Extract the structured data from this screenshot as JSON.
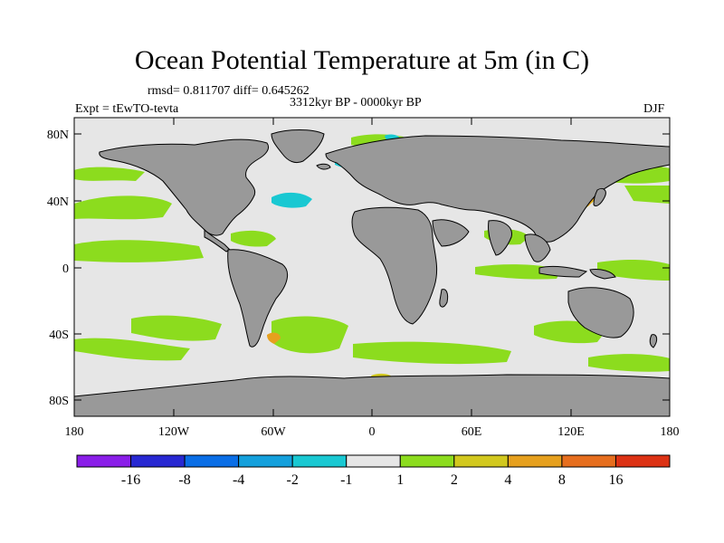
{
  "title": "Ocean Potential Temperature at 5m (in C)",
  "stats": "rmsd= 0.811707 diff= 0.645262",
  "period": "3312kyr BP - 0000kyr BP",
  "experiment": "Expt = tEwTO-tevta",
  "season": "DJF",
  "lat_ticks": [
    "80N",
    "40N",
    "0",
    "40S",
    "80S"
  ],
  "lon_ticks": [
    "180",
    "120W",
    "60W",
    "0",
    "60E",
    "120E",
    "180"
  ],
  "colorbar": {
    "labels": [
      "-16",
      "-8",
      "-4",
      "-2",
      "-1",
      "1",
      "2",
      "4",
      "8",
      "16"
    ],
    "colors": [
      "#8a1ee8",
      "#2828d2",
      "#0a6ee6",
      "#14a0dc",
      "#19c8d2",
      "#e6e6e6",
      "#8cdc1e",
      "#d2c81e",
      "#e6a01e",
      "#e66e1e",
      "#dc3214"
    ]
  },
  "colors": {
    "land": "#999999",
    "ocean_neutral": "#e6e6e6",
    "warm_1_2": "#8cdc1e",
    "cool_-1_-2": "#19c8d2"
  }
}
